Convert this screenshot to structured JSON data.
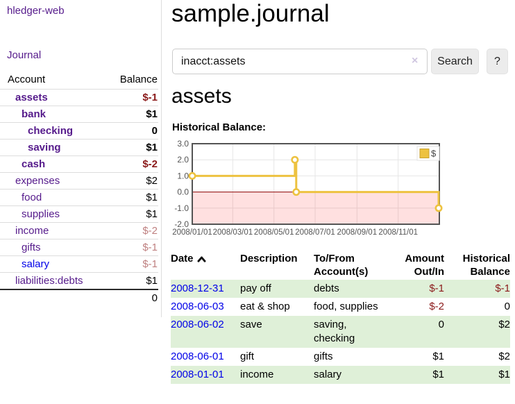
{
  "app": {
    "brand": "hledger-web",
    "nav": {
      "journal": "Journal"
    }
  },
  "sidebar": {
    "header": {
      "account": "Account",
      "balance": "Balance"
    },
    "accounts": [
      {
        "name": "assets",
        "indent": 1,
        "balance": "$-1",
        "bold": true,
        "balance_style": "neg-strong"
      },
      {
        "name": "bank",
        "indent": 2,
        "balance": "$1",
        "bold": true,
        "balance_style": ""
      },
      {
        "name": "checking",
        "indent": 3,
        "balance": "0",
        "bold": true,
        "balance_style": ""
      },
      {
        "name": "saving",
        "indent": 3,
        "balance": "$1",
        "bold": true,
        "balance_style": ""
      },
      {
        "name": "cash",
        "indent": 2,
        "balance": "$-2",
        "bold": true,
        "balance_style": "neg-strong"
      },
      {
        "name": "expenses",
        "indent": 1,
        "balance": "$2",
        "bold": false,
        "balance_style": ""
      },
      {
        "name": "food",
        "indent": 2,
        "balance": "$1",
        "bold": false,
        "balance_style": ""
      },
      {
        "name": "supplies",
        "indent": 2,
        "balance": "$1",
        "bold": false,
        "balance_style": ""
      },
      {
        "name": "income",
        "indent": 1,
        "balance": "$-2",
        "bold": false,
        "balance_style": "neg-faded"
      },
      {
        "name": "gifts",
        "indent": 2,
        "balance": "$-1",
        "bold": false,
        "balance_style": "neg-faded"
      },
      {
        "name": "salary",
        "indent": 2,
        "balance": "$-1",
        "bold": false,
        "balance_style": "neg-faded",
        "link_style": "unvisited"
      },
      {
        "name": "liabilities:debts",
        "indent": 1,
        "balance": "$1",
        "bold": false,
        "balance_style": ""
      }
    ],
    "total": "0"
  },
  "main": {
    "title": "sample.journal",
    "search": {
      "value": "inacct:assets",
      "clear": "×",
      "button": "Search",
      "help": "?"
    },
    "heading": "assets",
    "chart_title": "Historical Balance:"
  },
  "chart_data": {
    "type": "line",
    "title": "Historical Balance",
    "step": true,
    "series": [
      {
        "name": "$",
        "color": "#edc240",
        "points": [
          [
            "2008-01-01",
            1
          ],
          [
            "2008-06-01",
            2
          ],
          [
            "2008-06-03",
            0
          ],
          [
            "2008-12-31",
            -1
          ]
        ]
      }
    ],
    "ylim": [
      -2,
      3
    ],
    "yticks": [
      3.0,
      2.0,
      1.0,
      0.0,
      -1.0,
      -2.0
    ],
    "xticks": [
      "2008/01/01",
      "2008/03/01",
      "2008/05/01",
      "2008/07/01",
      "2008/09/01",
      "2008/11/01"
    ],
    "x_start": "2008-01-01",
    "x_range_days": 366,
    "legend": "$",
    "legend_position": "top-right",
    "grid": true,
    "zero_line_color": "#8b0000",
    "negative_region": true
  },
  "table": {
    "headers": [
      "Date",
      "Description",
      "To/From Account(s)",
      "Amount Out/In",
      "Historical Balance"
    ],
    "sort": {
      "column": "Date",
      "direction": "ascending"
    },
    "rows": [
      {
        "date": "2008-12-31",
        "description": "pay off",
        "accounts": "debts",
        "amount": "$-1",
        "amount_neg": true,
        "balance": "$-1",
        "balance_neg": true
      },
      {
        "date": "2008-06-03",
        "description": "eat & shop",
        "accounts": "food, supplies",
        "amount": "$-2",
        "amount_neg": true,
        "balance": "0",
        "balance_neg": false
      },
      {
        "date": "2008-06-02",
        "description": "save",
        "accounts": "saving, checking",
        "amount": "0",
        "amount_neg": false,
        "balance": "$2",
        "balance_neg": false
      },
      {
        "date": "2008-06-01",
        "description": "gift",
        "accounts": "gifts",
        "amount": "$1",
        "amount_neg": false,
        "balance": "$2",
        "balance_neg": false
      },
      {
        "date": "2008-01-01",
        "description": "income",
        "accounts": "salary",
        "amount": "$1",
        "amount_neg": false,
        "balance": "$1",
        "balance_neg": false
      }
    ]
  }
}
